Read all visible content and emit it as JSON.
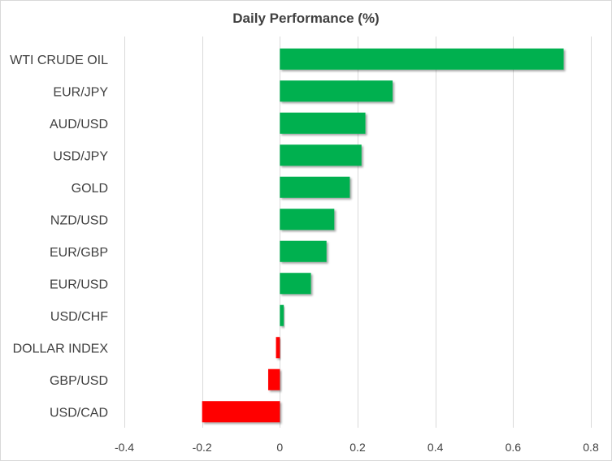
{
  "chart_data": {
    "type": "bar",
    "orientation": "horizontal",
    "title": "Daily Performance  (%)",
    "xlabel": "",
    "ylabel": "",
    "categories": [
      "WTI CRUDE OIL",
      "EUR/JPY",
      "AUD/USD",
      "USD/JPY",
      "GOLD",
      "NZD/USD",
      "EUR/GBP",
      "EUR/USD",
      "USD/CHF",
      "DOLLAR INDEX",
      "GBP/USD",
      "USD/CAD"
    ],
    "values": [
      0.73,
      0.29,
      0.22,
      0.21,
      0.18,
      0.14,
      0.12,
      0.08,
      0.01,
      -0.01,
      -0.03,
      -0.2
    ],
    "xlim": [
      -0.4,
      0.8
    ],
    "ticks": [
      -0.4,
      -0.2,
      0,
      0.2,
      0.4,
      0.6,
      0.8
    ],
    "tick_labels": [
      "-0.4",
      "-0.2",
      "0",
      "0.2",
      "0.4",
      "0.6",
      "0.8"
    ],
    "grid": true,
    "colors": {
      "positive": "#00b050",
      "negative": "#ff0000",
      "grid": "#d9d9d9",
      "text": "#404040"
    }
  }
}
